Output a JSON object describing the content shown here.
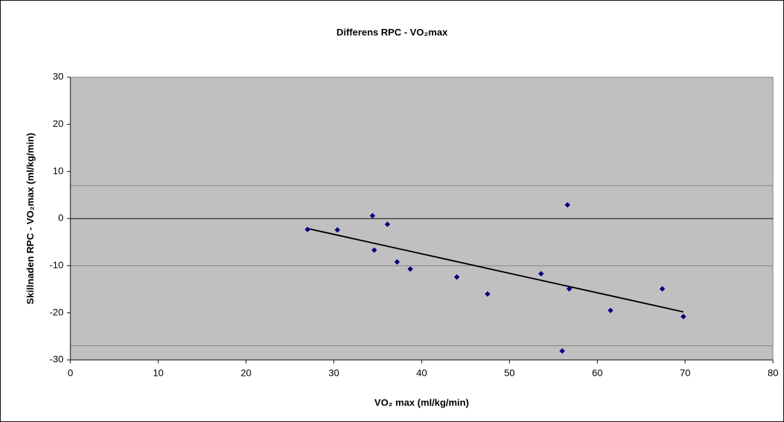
{
  "chart_data": {
    "type": "scatter",
    "title": "Differens RPC - VO₂max",
    "x_label": "VO₂ max (ml/kg/min)",
    "y_label": "Skillnaden RPC - VO₂max (ml/kg/min)",
    "xlim": [
      0,
      80
    ],
    "xticks": [
      0,
      10,
      20,
      30,
      40,
      50,
      60,
      70,
      80
    ],
    "ylim": [
      -30,
      30
    ],
    "yticks": [
      -30,
      -20,
      -10,
      0,
      10,
      20,
      30
    ],
    "background": "#c0c0c0",
    "series": [
      {
        "color": "#000080",
        "x": [
          27.0,
          30.4,
          34.4,
          34.6,
          36.1,
          37.2,
          38.7,
          44.0,
          47.5,
          53.6,
          56.6,
          56.8,
          56.0,
          61.5,
          67.4,
          69.8
        ],
        "values": [
          -2.3,
          -2.4,
          0.6,
          -6.7,
          -1.2,
          -9.2,
          -10.7,
          -12.4,
          -16.0,
          -11.7,
          2.9,
          -14.9,
          -28.1,
          -19.5,
          -14.9,
          -20.8
        ]
      }
    ],
    "trendline": {
      "color": "#000000",
      "x": [
        27.0,
        69.8
      ],
      "values": [
        -2.1,
        -19.8
      ]
    },
    "horizontal_lines": [
      {
        "y": 7,
        "color": "#808080"
      },
      {
        "y": 0,
        "color": "#000000"
      },
      {
        "y": -10,
        "color": "#808080"
      },
      {
        "y": -27,
        "color": "#808080"
      }
    ]
  }
}
